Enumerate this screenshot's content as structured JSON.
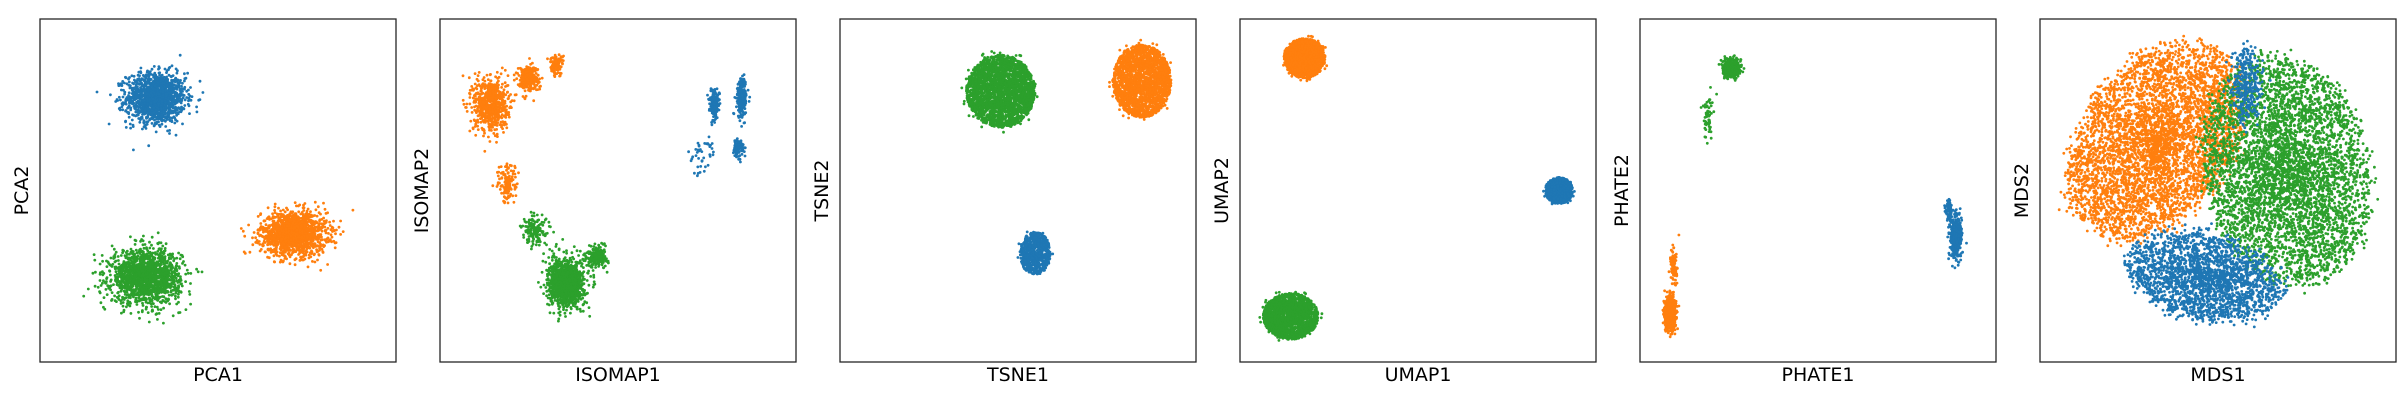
{
  "figure": {
    "background": "#ffffff"
  },
  "legend_colors": {
    "blue": "#1f77b4",
    "orange": "#ff7f0e",
    "green": "#2ca02c"
  },
  "chart_data": [
    {
      "type": "scatter",
      "title": "",
      "xlabel": "PCA1",
      "ylabel": "PCA2",
      "xlim": [
        0,
        1
      ],
      "ylim": [
        0,
        1
      ],
      "grid": false,
      "ticks": false,
      "series": [
        {
          "color": "#1f77b4",
          "center": [
            0.32,
            0.78
          ],
          "spread": [
            0.085,
            0.075
          ],
          "count": 1400
        },
        {
          "color": "#ff7f0e",
          "center": [
            0.72,
            0.37
          ],
          "spread": [
            0.095,
            0.065
          ],
          "count": 1500
        },
        {
          "color": "#2ca02c",
          "center": [
            0.29,
            0.24
          ],
          "spread": [
            0.1,
            0.08
          ],
          "count": 1700
        }
      ]
    },
    {
      "type": "scatter",
      "title": "",
      "xlabel": "ISOMAP1",
      "ylabel": "ISOMAP2",
      "xlim": [
        0,
        1
      ],
      "ylim": [
        0,
        1
      ],
      "grid": false,
      "ticks": false,
      "series": [
        {
          "color": "#ff7f0e",
          "center": [
            0.13,
            0.76
          ],
          "spread": [
            0.05,
            0.08
          ],
          "count": 700
        },
        {
          "color": "#ff7f0e",
          "center": [
            0.24,
            0.84
          ],
          "spread": [
            0.03,
            0.04
          ],
          "count": 260
        },
        {
          "color": "#ff7f0e",
          "center": [
            0.32,
            0.88
          ],
          "spread": [
            0.02,
            0.03
          ],
          "count": 120
        },
        {
          "color": "#ff7f0e",
          "center": [
            0.18,
            0.52
          ],
          "spread": [
            0.03,
            0.06
          ],
          "count": 120
        },
        {
          "color": "#2ca02c",
          "center": [
            0.35,
            0.22
          ],
          "spread": [
            0.05,
            0.07
          ],
          "count": 1300
        },
        {
          "color": "#2ca02c",
          "center": [
            0.44,
            0.3
          ],
          "spread": [
            0.03,
            0.03
          ],
          "count": 220
        },
        {
          "color": "#2ca02c",
          "center": [
            0.26,
            0.38
          ],
          "spread": [
            0.04,
            0.05
          ],
          "count": 150
        },
        {
          "color": "#1f77b4",
          "center": [
            0.86,
            0.78
          ],
          "spread": [
            0.015,
            0.06
          ],
          "count": 220
        },
        {
          "color": "#1f77b4",
          "center": [
            0.78,
            0.76
          ],
          "spread": [
            0.015,
            0.05
          ],
          "count": 150
        },
        {
          "color": "#1f77b4",
          "center": [
            0.85,
            0.63
          ],
          "spread": [
            0.015,
            0.03
          ],
          "count": 90
        },
        {
          "color": "#1f77b4",
          "center": [
            0.74,
            0.6
          ],
          "spread": [
            0.04,
            0.06
          ],
          "count": 40
        }
      ]
    },
    {
      "type": "scatter",
      "title": "",
      "xlabel": "TSNE1",
      "ylabel": "TSNE2",
      "xlim": [
        0,
        1
      ],
      "ylim": [
        0,
        1
      ],
      "grid": false,
      "ticks": false,
      "series": [
        {
          "color": "#2ca02c",
          "center": [
            0.45,
            0.8
          ],
          "spread": [
            0.1,
            0.11
          ],
          "count": 2500,
          "shape": "disc"
        },
        {
          "color": "#ff7f0e",
          "center": [
            0.86,
            0.83
          ],
          "spread": [
            0.085,
            0.11
          ],
          "count": 2200,
          "shape": "disc"
        },
        {
          "color": "#1f77b4",
          "center": [
            0.55,
            0.31
          ],
          "spread": [
            0.045,
            0.065
          ],
          "count": 700,
          "shape": "disc"
        }
      ]
    },
    {
      "type": "scatter",
      "title": "",
      "xlabel": "UMAP1",
      "ylabel": "UMAP2",
      "xlim": [
        0,
        1
      ],
      "ylim": [
        0,
        1
      ],
      "grid": false,
      "ticks": false,
      "series": [
        {
          "color": "#ff7f0e",
          "center": [
            0.17,
            0.9
          ],
          "spread": [
            0.06,
            0.06
          ],
          "count": 1500,
          "shape": "disc"
        },
        {
          "color": "#1f77b4",
          "center": [
            0.91,
            0.5
          ],
          "spread": [
            0.04,
            0.04
          ],
          "count": 700,
          "shape": "disc"
        },
        {
          "color": "#2ca02c",
          "center": [
            0.13,
            0.12
          ],
          "spread": [
            0.08,
            0.07
          ],
          "count": 1800,
          "shape": "disc"
        }
      ]
    },
    {
      "type": "scatter",
      "title": "",
      "xlabel": "PHATE1",
      "ylabel": "PHATE2",
      "xlim": [
        0,
        1
      ],
      "ylim": [
        0,
        1
      ],
      "grid": false,
      "ticks": false,
      "series": [
        {
          "color": "#2ca02c",
          "center": [
            0.25,
            0.87
          ],
          "spread": [
            0.025,
            0.025
          ],
          "count": 500
        },
        {
          "color": "#2ca02c",
          "center": [
            0.18,
            0.72
          ],
          "spread": [
            0.015,
            0.06
          ],
          "count": 60
        },
        {
          "color": "#ff7f0e",
          "center": [
            0.07,
            0.13
          ],
          "spread": [
            0.015,
            0.05
          ],
          "count": 800
        },
        {
          "color": "#ff7f0e",
          "center": [
            0.08,
            0.27
          ],
          "spread": [
            0.01,
            0.06
          ],
          "count": 100
        },
        {
          "color": "#1f77b4",
          "center": [
            0.9,
            0.36
          ],
          "spread": [
            0.015,
            0.06
          ],
          "count": 600
        },
        {
          "color": "#1f77b4",
          "center": [
            0.88,
            0.44
          ],
          "spread": [
            0.01,
            0.03
          ],
          "count": 80
        }
      ]
    },
    {
      "type": "scatter",
      "title": "",
      "xlabel": "MDS1",
      "ylabel": "MDS2",
      "xlim": [
        0,
        1
      ],
      "ylim": [
        0,
        1
      ],
      "grid": false,
      "ticks": false,
      "series": [
        {
          "color": "#ff7f0e",
          "center": [
            0.32,
            0.65
          ],
          "spread": [
            0.22,
            0.33
          ],
          "count": 4500,
          "shape": "ellipse",
          "tilt": -35
        },
        {
          "color": "#2ca02c",
          "center": [
            0.7,
            0.56
          ],
          "spread": [
            0.24,
            0.35
          ],
          "count": 4500,
          "shape": "ellipse",
          "tilt": 10
        },
        {
          "color": "#1f77b4",
          "center": [
            0.46,
            0.24
          ],
          "spread": [
            0.23,
            0.13
          ],
          "count": 2200,
          "shape": "ellipse",
          "tilt": -12
        },
        {
          "color": "#1f77b4",
          "center": [
            0.58,
            0.82
          ],
          "spread": [
            0.04,
            0.12
          ],
          "count": 300,
          "shape": "ellipse",
          "tilt": 0
        }
      ]
    }
  ]
}
